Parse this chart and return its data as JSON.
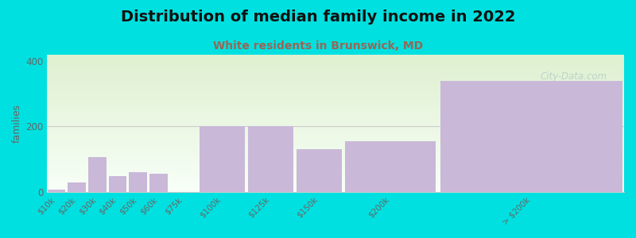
{
  "title": "Distribution of median family income in 2022",
  "subtitle": "White residents in Brunswick, MD",
  "ylabel": "families",
  "categories": [
    "$10k",
    "$20k",
    "$30k",
    "$40k",
    "$50k",
    "$60k",
    "$75k",
    "$100k",
    "$125k",
    "$150k",
    "$200k",
    "> $200k"
  ],
  "values": [
    7,
    28,
    107,
    48,
    60,
    55,
    0,
    200,
    200,
    130,
    155,
    340
  ],
  "bar_widths": [
    1,
    1,
    1,
    1,
    1,
    1,
    1.5,
    2.5,
    2.5,
    2.5,
    5,
    10
  ],
  "bar_color": "#c9b8d8",
  "background_outer": "#00e0e0",
  "background_inner_top": "#dff0d0",
  "background_inner_bottom": "#f8fff8",
  "title_fontsize": 14,
  "subtitle_fontsize": 10,
  "subtitle_color": "#996655",
  "ylabel_fontsize": 9,
  "yticks": [
    0,
    200,
    400
  ],
  "ylim": [
    0,
    420
  ],
  "watermark": "City-Data.com",
  "watermark_color": "#b8ccc8"
}
